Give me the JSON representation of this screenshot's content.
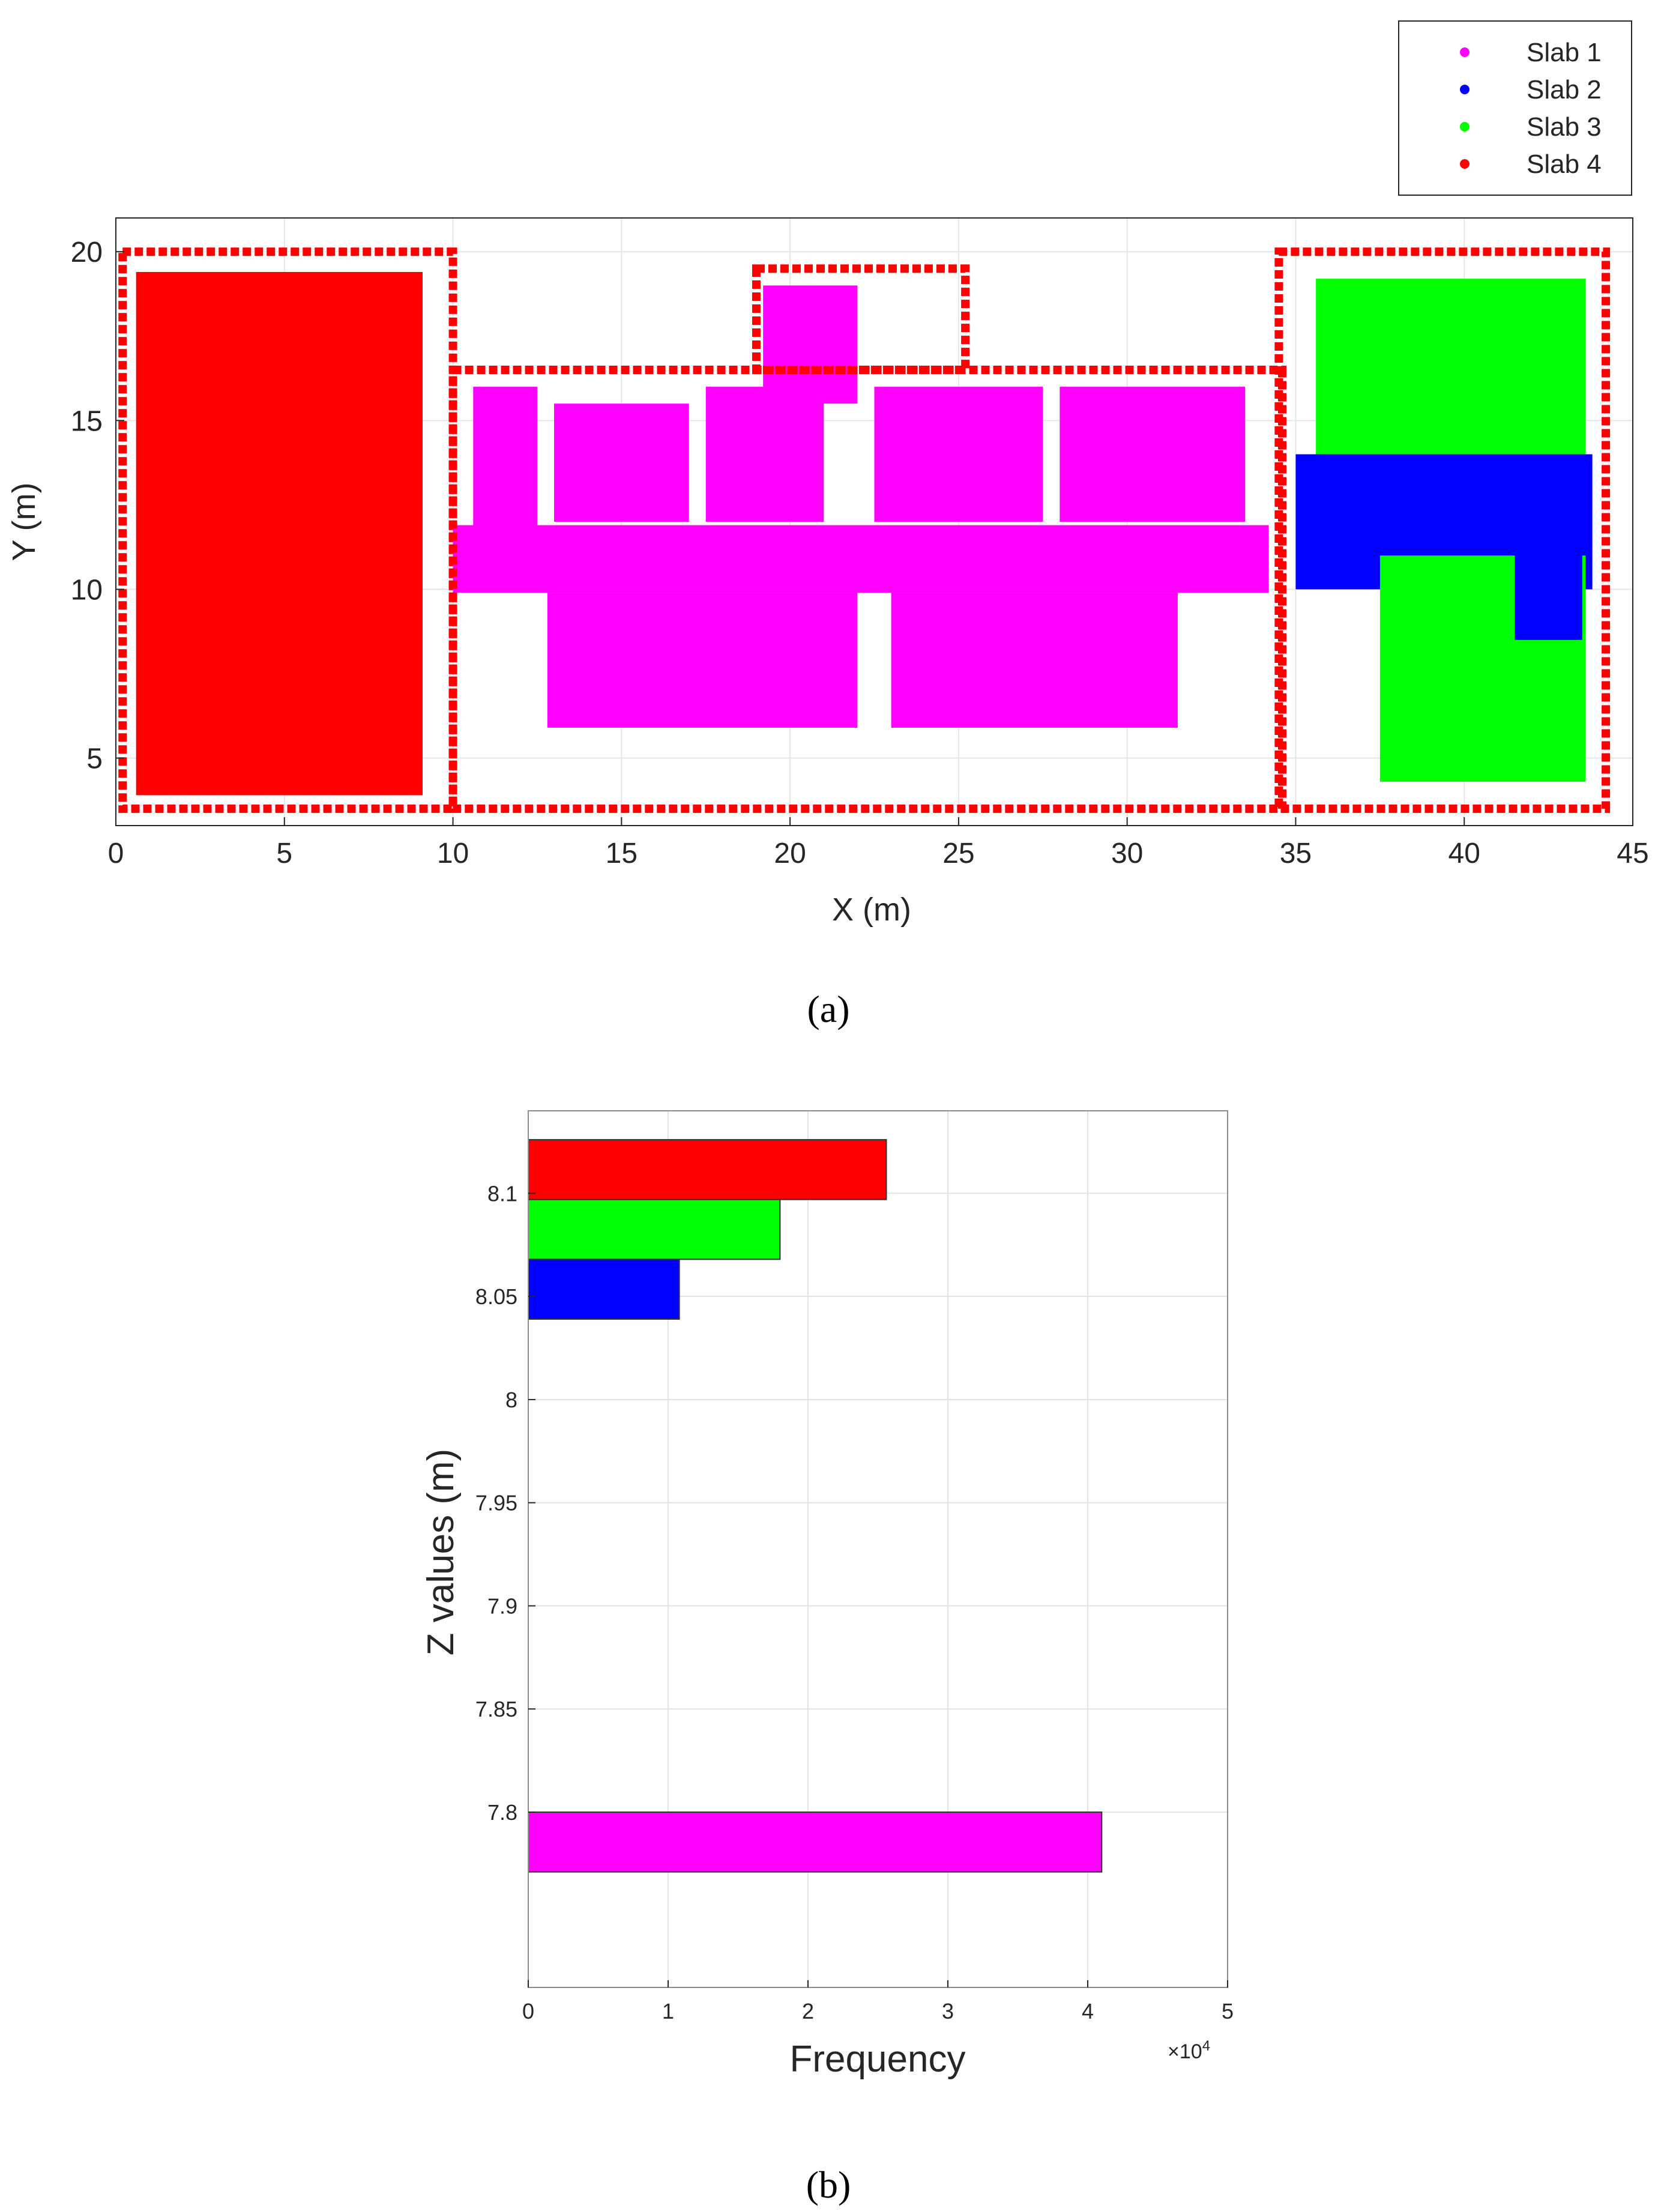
{
  "chart_data": [
    {
      "panel": "a",
      "panel_label": "(a)",
      "type": "scatter",
      "xlabel": "X (m)",
      "ylabel": "Y (m)",
      "xlim": [
        0,
        45
      ],
      "ylim": [
        3,
        21
      ],
      "xticks": [
        0,
        5,
        10,
        15,
        20,
        25,
        30,
        35,
        40,
        45
      ],
      "yticks": [
        5,
        10,
        15,
        20
      ],
      "grid": true,
      "legend_position": "top-right (outside axes)",
      "series": [
        {
          "name": "Slab 1",
          "color": "#ff00ff"
        },
        {
          "name": "Slab 2",
          "color": "#0000ff"
        },
        {
          "name": "Slab 3",
          "color": "#00ff00"
        },
        {
          "name": "Slab 4",
          "color": "#ff0000"
        }
      ],
      "regions": [
        {
          "series": "Slab 4",
          "kind": "fill",
          "x": [
            0.6,
            9.1
          ],
          "y": [
            3.9,
            19.4
          ]
        },
        {
          "series": "Slab 4",
          "kind": "outline",
          "x": [
            0.2,
            10.0
          ],
          "y": [
            3.5,
            20.0
          ]
        },
        {
          "series": "Slab 1",
          "kind": "fill",
          "x": [
            10.0,
            34.2
          ],
          "y": [
            9.9,
            11.9
          ]
        },
        {
          "series": "Slab 1",
          "kind": "fill",
          "x": [
            10.6,
            12.5
          ],
          "y": [
            11.5,
            16.0
          ]
        },
        {
          "series": "Slab 1",
          "kind": "fill",
          "x": [
            13.0,
            17.0
          ],
          "y": [
            12.0,
            15.5
          ]
        },
        {
          "series": "Slab 1",
          "kind": "fill",
          "x": [
            17.5,
            21.0
          ],
          "y": [
            12.0,
            16.0
          ]
        },
        {
          "series": "Slab 1",
          "kind": "fill",
          "x": [
            19.2,
            22.0
          ],
          "y": [
            15.5,
            19.0
          ]
        },
        {
          "series": "Slab 1",
          "kind": "fill",
          "x": [
            22.5,
            27.5
          ],
          "y": [
            12.0,
            16.0
          ]
        },
        {
          "series": "Slab 1",
          "kind": "fill",
          "x": [
            28.0,
            33.5
          ],
          "y": [
            12.0,
            16.0
          ]
        },
        {
          "series": "Slab 1",
          "kind": "fill",
          "x": [
            12.8,
            22.0
          ],
          "y": [
            5.9,
            9.9
          ]
        },
        {
          "series": "Slab 1",
          "kind": "fill",
          "x": [
            23.0,
            31.5
          ],
          "y": [
            5.9,
            9.9
          ]
        },
        {
          "series": "Slab 4",
          "kind": "outline",
          "x": [
            10.0,
            34.6
          ],
          "y": [
            3.5,
            16.5
          ]
        },
        {
          "series": "Slab 4",
          "kind": "outline",
          "x": [
            19.0,
            25.2
          ],
          "y": [
            16.5,
            19.5
          ]
        },
        {
          "series": "Slab 3",
          "kind": "fill",
          "x": [
            35.6,
            43.6
          ],
          "y": [
            12.3,
            19.2
          ]
        },
        {
          "series": "Slab 2",
          "kind": "fill",
          "x": [
            35.0,
            43.8
          ],
          "y": [
            10.0,
            14.0
          ]
        },
        {
          "series": "Slab 3",
          "kind": "fill",
          "x": [
            37.5,
            43.6
          ],
          "y": [
            4.3,
            11.0
          ]
        },
        {
          "series": "Slab 2",
          "kind": "fill",
          "x": [
            41.5,
            43.5
          ],
          "y": [
            8.5,
            12.0
          ]
        },
        {
          "series": "Slab 4",
          "kind": "outline",
          "x": [
            34.5,
            44.2
          ],
          "y": [
            3.5,
            20.0
          ]
        }
      ]
    },
    {
      "panel": "b",
      "panel_label": "(b)",
      "type": "bar",
      "orientation": "horizontal",
      "xlabel": "Frequency",
      "ylabel": "Z values (m)",
      "xlim": [
        0,
        5
      ],
      "x_exponent_label": "×10^4",
      "ylim": [
        7.715,
        8.14
      ],
      "xticks": [
        0,
        1,
        2,
        3,
        4,
        5
      ],
      "yticks": [
        7.8,
        7.85,
        7.9,
        7.95,
        8,
        8.05,
        8.1
      ],
      "grid": true,
      "bars": [
        {
          "series": "Slab 1",
          "z_range": [
            7.771,
            7.8
          ],
          "frequency_x1e4": 4.1,
          "color": "#ff00ff"
        },
        {
          "series": "Slab 2",
          "z_range": [
            8.039,
            8.068
          ],
          "frequency_x1e4": 1.08,
          "color": "#0000ff"
        },
        {
          "series": "Slab 3",
          "z_range": [
            8.068,
            8.097
          ],
          "frequency_x1e4": 1.8,
          "color": "#00ff00"
        },
        {
          "series": "Slab 4",
          "z_range": [
            8.097,
            8.126
          ],
          "frequency_x1e4": 2.56,
          "color": "#ff0000"
        }
      ]
    }
  ]
}
